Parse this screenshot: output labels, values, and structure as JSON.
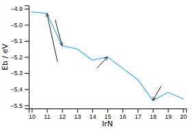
{
  "chart_data": {
    "type": "line",
    "x": [
      10,
      11,
      12,
      13,
      14,
      15,
      16,
      17,
      18,
      19,
      20
    ],
    "values": [
      -4.92,
      -4.93,
      -5.13,
      -5.15,
      -5.22,
      -5.2,
      -5.27,
      -5.34,
      -5.47,
      -5.42,
      -5.46
    ],
    "color": "#5bb8e8",
    "xlabel": "IrN",
    "ylabel": "Eb / eV",
    "xlim": [
      9.8,
      20.2
    ],
    "ylim": [
      -5.52,
      -4.88
    ],
    "xticks": [
      10,
      11,
      12,
      13,
      14,
      15,
      16,
      17,
      18,
      19,
      20
    ],
    "yticks": [
      {
        "value": -5.5,
        "label": "−5.5"
      },
      {
        "value": -5.4,
        "label": "−5.4"
      },
      {
        "value": -5.3,
        "label": "−5.3"
      },
      {
        "value": -5.2,
        "label": "−5.2"
      },
      {
        "value": -5.1,
        "label": "−5.1"
      },
      {
        "value": -5.0,
        "label": "−5.0"
      },
      {
        "value": -4.9,
        "label": "−4.9"
      }
    ],
    "grid": false,
    "annotations": [
      {
        "xy": [
          11,
          -4.93
        ],
        "xytext": [
          11.7,
          -5.23
        ]
      },
      {
        "xy": [
          12,
          -5.13
        ],
        "xytext": [
          11.55,
          -4.97
        ]
      },
      {
        "xy": [
          15,
          -5.2
        ],
        "xytext": [
          14.3,
          -5.27
        ]
      },
      {
        "xy": [
          18,
          -5.47
        ],
        "xytext": [
          18.55,
          -5.38
        ]
      }
    ]
  }
}
